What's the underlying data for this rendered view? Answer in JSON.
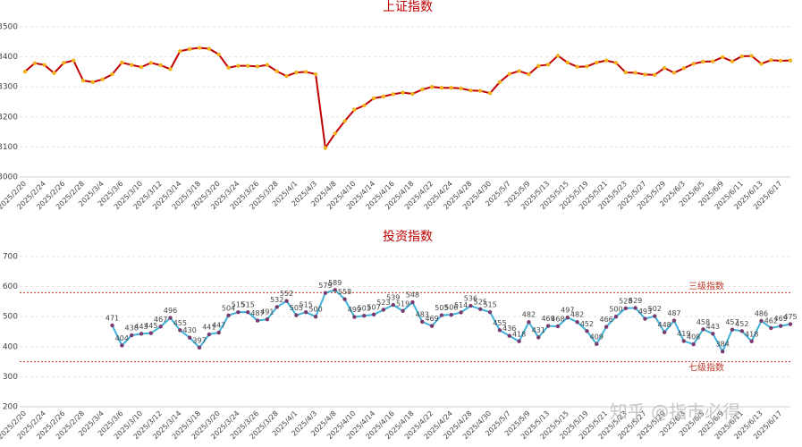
{
  "chart_data": [
    {
      "type": "line",
      "title": "上证指数",
      "categories": [
        "2025/2/20",
        null,
        "2025/2/24",
        null,
        "2025/2/26",
        null,
        "2025/2/28",
        null,
        "2025/3/4",
        null,
        "2025/3/6",
        null,
        "2025/3/10",
        null,
        "2025/3/12",
        null,
        "2025/3/14",
        null,
        "2025/3/18",
        null,
        "2025/3/20",
        null,
        "2025/3/24",
        null,
        "2025/3/26",
        null,
        "2025/3/28",
        null,
        "2025/4/1",
        null,
        "2025/4/3",
        null,
        "2025/4/8",
        null,
        "2025/4/10",
        null,
        "2025/4/14",
        null,
        "2025/4/16",
        null,
        "2025/4/18",
        null,
        "2025/4/22",
        null,
        "2025/4/24",
        null,
        "2025/4/28",
        null,
        "2025/4/30",
        null,
        "2025/5/7",
        null,
        "2025/5/9",
        null,
        "2025/5/13",
        null,
        "2025/5/15",
        null,
        "2025/5/19",
        null,
        "2025/5/21",
        null,
        "2025/5/23",
        null,
        "2025/5/27",
        null,
        "2025/5/29",
        null,
        "2025/6/3",
        null,
        "2025/6/5",
        null,
        "2025/6/9",
        null,
        "2025/6/11",
        null,
        "2025/6/13",
        null,
        "2025/6/17",
        null
      ],
      "values": [
        3351,
        3379,
        3373,
        3346,
        3380,
        3388,
        3321,
        3316,
        3325,
        3342,
        3381,
        3373,
        3366,
        3380,
        3372,
        3359,
        3419,
        3426,
        3430,
        3427,
        3408,
        3364,
        3370,
        3370,
        3368,
        3373,
        3352,
        3336,
        3348,
        3350,
        3342,
        3097,
        3145,
        3186,
        3224,
        3238,
        3262,
        3268,
        3276,
        3281,
        3277,
        3291,
        3300,
        3297,
        3297,
        3295,
        3288,
        3287,
        3279,
        3316,
        3343,
        3353,
        3342,
        3370,
        3374,
        3404,
        3381,
        3367,
        3368,
        3381,
        3388,
        3380,
        3348,
        3347,
        3341,
        3340,
        3363,
        3347,
        3362,
        3377,
        3384,
        3385,
        3399,
        3385,
        3402,
        3403,
        3377,
        3389,
        3387,
        3388
      ],
      "color": "#c00000",
      "marker_color": "#f2b21c",
      "ylim": [
        3000,
        3500
      ],
      "yticks": [
        3000,
        3100,
        3200,
        3300,
        3400,
        3500
      ],
      "grid": true,
      "data_labels": false
    },
    {
      "type": "line",
      "title": "投资指数",
      "categories": [
        "2025/2/20",
        null,
        "2025/2/24",
        null,
        "2025/2/26",
        null,
        "2025/2/28",
        null,
        "2025/3/4",
        null,
        "2025/3/6",
        null,
        "2025/3/10",
        null,
        "2025/3/12",
        null,
        "2025/3/14",
        null,
        "2025/3/18",
        null,
        "2025/3/20",
        null,
        "2025/3/24",
        null,
        "2025/3/26",
        null,
        "2025/3/28",
        null,
        "2025/4/1",
        null,
        "2025/4/3",
        null,
        "2025/4/8",
        null,
        "2025/4/10",
        null,
        "2025/4/14",
        null,
        "2025/4/16",
        null,
        "2025/4/18",
        null,
        "2025/4/22",
        null,
        "2025/4/24",
        null,
        "2025/4/28",
        null,
        "2025/4/30",
        null,
        "2025/5/7",
        null,
        "2025/5/9",
        null,
        "2025/5/13",
        null,
        "2025/5/15",
        null,
        "2025/5/19",
        null,
        "2025/5/21",
        null,
        "2025/5/23",
        null,
        "2025/5/27",
        null,
        "2025/5/29",
        null,
        "2025/6/3",
        null,
        "2025/6/5",
        null,
        "2025/6/9",
        null,
        "2025/6/11",
        null,
        "2025/6/13",
        null,
        "2025/6/17",
        null
      ],
      "values": [
        null,
        null,
        null,
        null,
        null,
        null,
        null,
        null,
        null,
        471,
        404,
        438,
        443,
        445,
        467,
        496,
        455,
        430,
        397,
        441,
        447,
        504,
        515,
        515,
        487,
        491,
        532,
        552,
        505,
        515,
        500,
        579,
        589,
        558,
        499,
        503,
        507,
        523,
        539,
        519,
        548,
        483,
        469,
        505,
        506,
        514,
        536,
        525,
        515,
        455,
        436,
        418,
        482,
        431,
        469,
        468,
        497,
        482,
        452,
        409,
        466,
        500,
        528,
        529,
        493,
        502,
        448,
        487,
        419,
        408,
        458,
        443,
        384,
        457,
        452,
        418,
        486,
        462,
        469,
        475
      ],
      "color": "#3fb2d9",
      "marker_color": "#7b3a6e",
      "ylim": [
        200,
        700
      ],
      "yticks": [
        200,
        300,
        400,
        500,
        600,
        700
      ],
      "grid": true,
      "data_labels": true,
      "reference_lines": [
        {
          "value": 580,
          "label": "三级指数"
        },
        {
          "value": 350,
          "label": "七级指数"
        }
      ],
      "reference_color": "#c0392b",
      "watermark": "知乎 @指市必得"
    }
  ]
}
